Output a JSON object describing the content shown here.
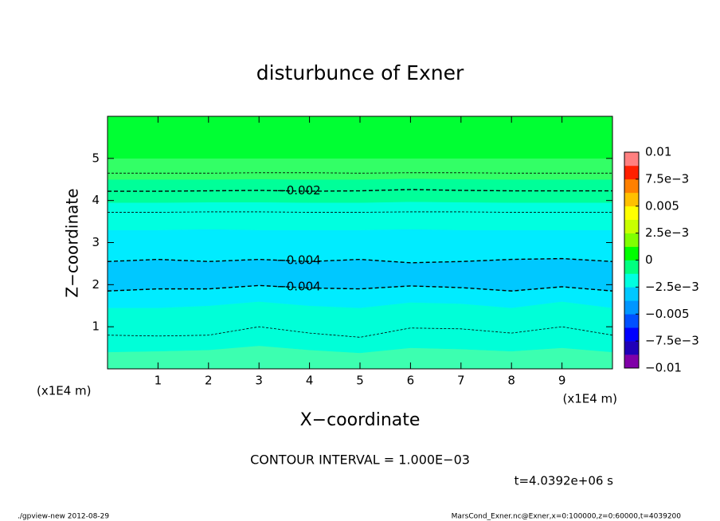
{
  "chart_data": {
    "type": "contour",
    "title": "disturbunce of Exner",
    "xlabel": "X−coordinate",
    "ylabel": "Z−coordinate",
    "x_unit_label": "(x1E4 m)",
    "x_unit_label_right": "(x1E4 m)",
    "contour_interval": "CONTOUR INTERVAL = 1.000E−03",
    "time_label": "t=4.0392e+06 s",
    "footer_left": "./gpview-new  2012-08-29",
    "footer_right": "MarsCond_Exner.nc@Exner,x=0:100000,z=0:60000,t=4039200",
    "xlim": [
      0,
      10
    ],
    "ylim": [
      0,
      6
    ],
    "xticks": [
      1,
      2,
      3,
      4,
      5,
      6,
      7,
      8,
      9
    ],
    "yticks": [
      1,
      2,
      3,
      4,
      5
    ],
    "x": [
      0,
      1,
      2,
      3,
      4,
      5,
      6,
      7,
      8,
      9,
      10
    ],
    "bands": [
      {
        "color": "#3cffb0",
        "top": [
          0.4,
          0.42,
          0.45,
          0.55,
          0.45,
          0.38,
          0.5,
          0.47,
          0.42,
          0.5,
          0.4
        ]
      },
      {
        "color": "#00ffd8",
        "top": [
          1.45,
          1.45,
          1.5,
          1.6,
          1.5,
          1.45,
          1.58,
          1.55,
          1.45,
          1.6,
          1.45
        ]
      },
      {
        "color": "#00ecff",
        "top": [
          1.85,
          1.9,
          1.9,
          1.98,
          1.92,
          1.9,
          1.97,
          1.93,
          1.85,
          1.95,
          1.85
        ]
      },
      {
        "color": "#00c8ff",
        "top": [
          2.55,
          2.6,
          2.55,
          2.6,
          2.55,
          2.6,
          2.52,
          2.55,
          2.6,
          2.62,
          2.55
        ]
      },
      {
        "color": "#00ecff",
        "top": [
          3.3,
          3.3,
          3.32,
          3.3,
          3.3,
          3.3,
          3.32,
          3.3,
          3.3,
          3.3,
          3.3
        ]
      },
      {
        "color": "#00ffe0",
        "top": [
          3.95,
          3.95,
          3.96,
          3.96,
          3.95,
          3.95,
          3.97,
          3.96,
          3.95,
          3.95,
          3.95
        ]
      },
      {
        "color": "#00ff99",
        "top": [
          4.5,
          4.5,
          4.5,
          4.51,
          4.5,
          4.5,
          4.52,
          4.51,
          4.5,
          4.5,
          4.5
        ]
      },
      {
        "color": "#33ff66",
        "top": [
          5.0,
          5.0,
          5.0,
          5.0,
          5.0,
          5.0,
          5.0,
          5.0,
          5.0,
          5.0,
          5.0
        ]
      },
      {
        "color": "#00ff33"
      }
    ],
    "contours": [
      {
        "level": -0.001,
        "z": [
          4.65,
          4.65,
          4.65,
          4.66,
          4.66,
          4.65,
          4.66,
          4.66,
          4.65,
          4.65,
          4.65
        ]
      },
      {
        "level": -0.002,
        "label": "−0.002",
        "z": [
          4.22,
          4.22,
          4.23,
          4.24,
          4.22,
          4.23,
          4.26,
          4.24,
          4.23,
          4.23,
          4.23
        ]
      },
      {
        "level": -0.003,
        "z": [
          3.72,
          3.72,
          3.73,
          3.73,
          3.72,
          3.72,
          3.73,
          3.73,
          3.72,
          3.72,
          3.72
        ]
      },
      {
        "level": -0.004,
        "label": "−0.004",
        "z": [
          2.55,
          2.6,
          2.55,
          2.6,
          2.55,
          2.6,
          2.52,
          2.55,
          2.6,
          2.62,
          2.55
        ]
      },
      {
        "level": -0.004,
        "label": "−0.004",
        "z": [
          1.85,
          1.9,
          1.9,
          1.98,
          1.92,
          1.9,
          1.97,
          1.93,
          1.85,
          1.95,
          1.85
        ]
      },
      {
        "level": -0.003,
        "z": [
          0.8,
          0.78,
          0.8,
          1.0,
          0.85,
          0.75,
          0.97,
          0.95,
          0.85,
          1.0,
          0.8
        ]
      }
    ],
    "colorbar": {
      "lim": [
        -0.01,
        0.01
      ],
      "colors": [
        "#8000a8",
        "#2000b8",
        "#0000ff",
        "#0050ff",
        "#0096ff",
        "#00c8ff",
        "#00ffe0",
        "#00ff80",
        "#00ff00",
        "#80ff00",
        "#c8ff00",
        "#ffff00",
        "#ffc000",
        "#ff8000",
        "#ff2000",
        "#ff8080"
      ],
      "ticks": [
        0.01,
        {
          "value": 0.0075,
          "label": "7.5e−3"
        },
        0.005,
        {
          "value": 0.0025,
          "label": "2.5e−3"
        },
        0,
        {
          "value": -0.0025,
          "label": "−2.5e−3"
        },
        {
          "value": -0.005,
          "label": "−0.005"
        },
        {
          "value": -0.0075,
          "label": "−7.5e−3"
        },
        {
          "value": -0.01,
          "label": "−0.01"
        }
      ]
    }
  }
}
